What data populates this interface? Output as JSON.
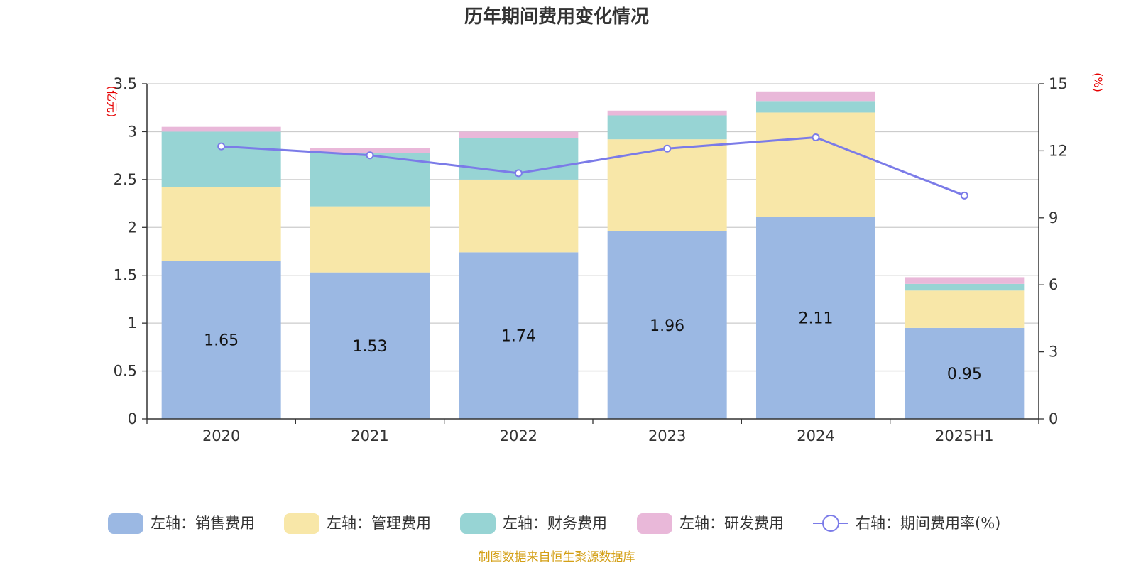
{
  "chart_data": {
    "type": "bar",
    "stacked": true,
    "title": "历年期间费用变化情况",
    "categories": [
      "2020",
      "2021",
      "2022",
      "2023",
      "2024",
      "2025H1"
    ],
    "y_left": {
      "unit": "(亿元)",
      "ylim": [
        0,
        3.5
      ],
      "ticks": [
        "0",
        "0.5",
        "1",
        "1.5",
        "2",
        "2.5",
        "3",
        "3.5"
      ]
    },
    "y_right": {
      "unit": "(%)",
      "ylim": [
        0,
        15
      ],
      "ticks": [
        "0",
        "3",
        "6",
        "9",
        "12",
        "15"
      ]
    },
    "series": [
      {
        "name": "左轴：销售费用",
        "axis": "left",
        "type": "bar",
        "color": "#9bb8e3",
        "values": [
          1.65,
          1.53,
          1.74,
          1.96,
          2.11,
          0.95
        ],
        "labels": [
          "1.65",
          "1.53",
          "1.74",
          "1.96",
          "2.11",
          "0.95"
        ]
      },
      {
        "name": "左轴：管理费用",
        "axis": "left",
        "type": "bar",
        "color": "#f8e7a8",
        "values": [
          0.77,
          0.69,
          0.76,
          0.96,
          1.09,
          0.39
        ]
      },
      {
        "name": "左轴：财务费用",
        "axis": "left",
        "type": "bar",
        "color": "#97d4d4",
        "values": [
          0.58,
          0.56,
          0.43,
          0.25,
          0.12,
          0.07
        ]
      },
      {
        "name": "左轴：研发费用",
        "axis": "left",
        "type": "bar",
        "color": "#e9b8d9",
        "values": [
          0.05,
          0.05,
          0.07,
          0.05,
          0.1,
          0.07
        ]
      },
      {
        "name": "右轴：期间费用率(%)",
        "axis": "right",
        "type": "line",
        "color": "#7b7be8",
        "values": [
          12.2,
          11.8,
          11.0,
          12.1,
          12.6,
          10.0
        ]
      }
    ],
    "grid": true,
    "legend_position": "bottom"
  },
  "source_note": "制图数据来自恒生聚源数据库",
  "colors": {
    "axis_unit": "#e60000",
    "source": "#d4a017",
    "grid": "#cccccc",
    "axis": "#333333"
  }
}
